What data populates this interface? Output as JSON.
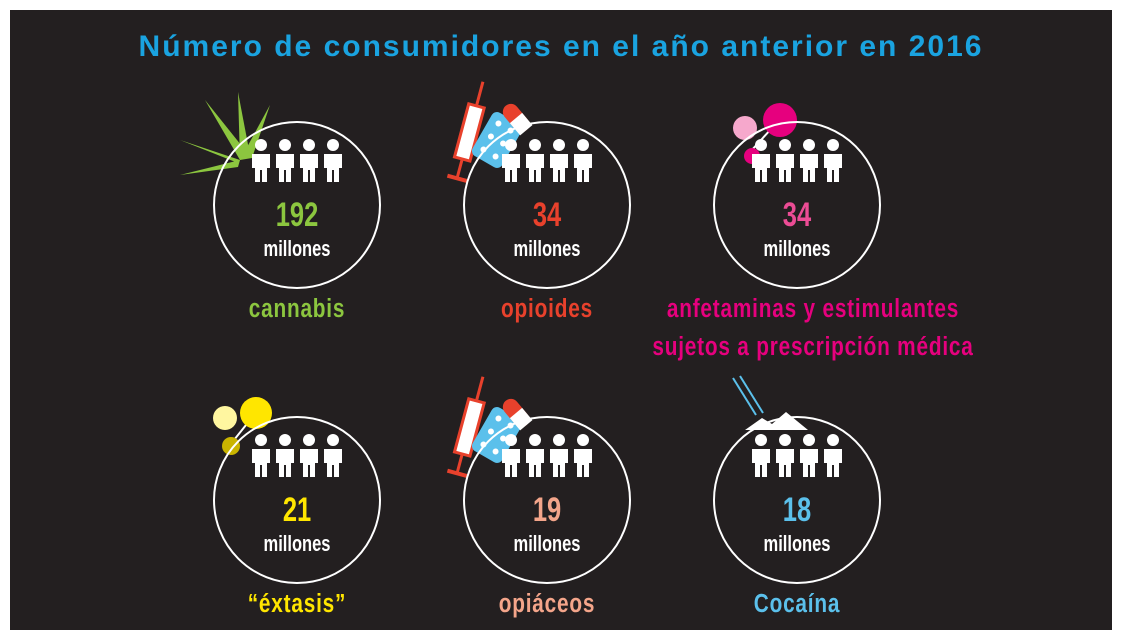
{
  "title": "Número de consumidores en el año anterior en 2016",
  "items": [
    {
      "value": "192",
      "unit": "millones",
      "label": [
        "cannabis"
      ],
      "color": "#8cc63f",
      "label_color": "#8cc63f"
    },
    {
      "value": "34",
      "unit": "millones",
      "label": [
        "opioides"
      ],
      "color": "#e8412c",
      "label_color": "#e8412c"
    },
    {
      "value": "34",
      "unit": "millones",
      "label": [
        "anfetaminas y estimulantes",
        "sujetos a prescripción médica"
      ],
      "color": "#ec4c95",
      "label_color": "#e6007e"
    },
    {
      "value": "21",
      "unit": "millones",
      "label": [
        "“éxtasis”"
      ],
      "color": "#ffe600",
      "label_color": "#ffe600"
    },
    {
      "value": "19",
      "unit": "millones",
      "label": [
        "opiáceos"
      ],
      "color": "#f4a58a",
      "label_color": "#f4a58a"
    },
    {
      "value": "18",
      "unit": "millones",
      "label": [
        "Cocaína"
      ],
      "color": "#5bc0eb",
      "label_color": "#5bc0eb"
    }
  ]
}
